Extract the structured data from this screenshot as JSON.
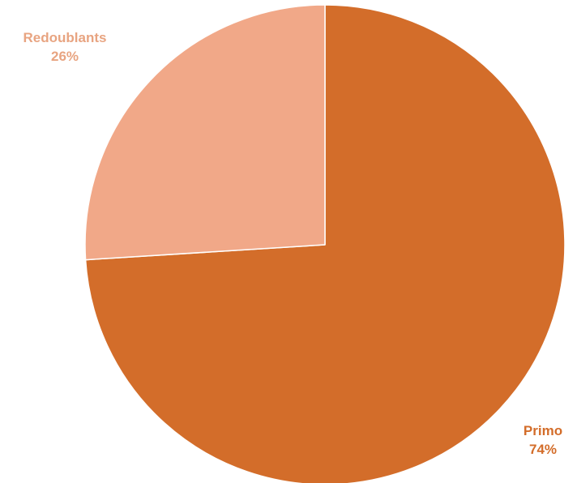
{
  "chart_data": {
    "type": "pie",
    "title": "",
    "start_angle_deg": 0,
    "direction": "clockwise",
    "slices": [
      {
        "name": "Primo",
        "value": 74,
        "label": "Primo",
        "percent_label": "74%",
        "color": "#D36D2A"
      },
      {
        "name": "Redoublants",
        "value": 26,
        "label": "Redoublants",
        "percent_label": "26%",
        "color": "#F1A888"
      }
    ],
    "label_color": "#E8A481",
    "primo_label_color": "#D36D2A",
    "legend": "none"
  }
}
